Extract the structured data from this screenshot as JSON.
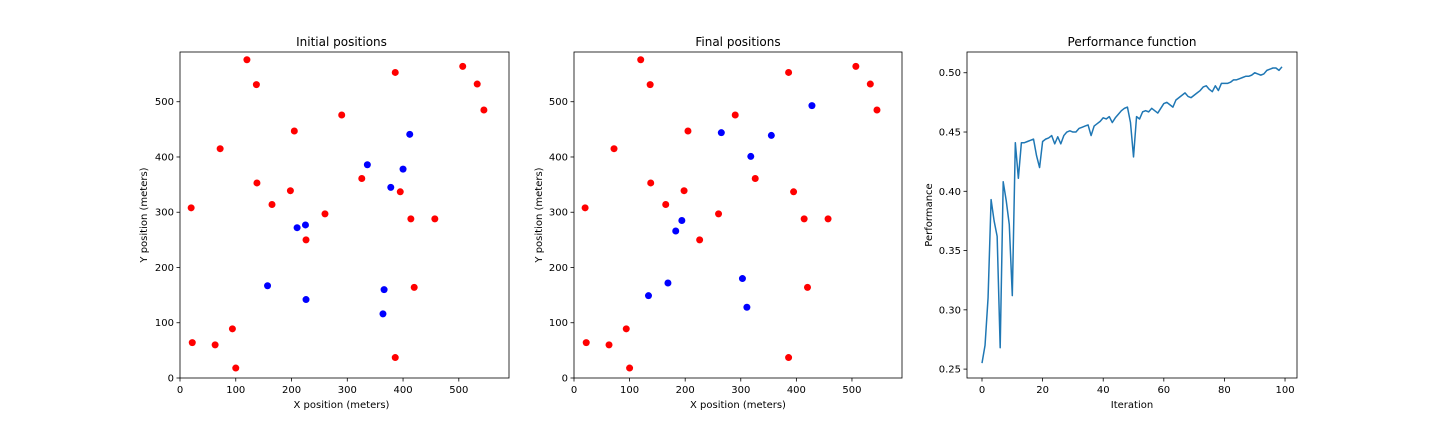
{
  "chart_data": [
    {
      "type": "scatter",
      "title": "Initial positions",
      "xlabel": "X position (meters)",
      "ylabel": "Y position (meters)",
      "xlim": [
        0,
        590
      ],
      "ylim": [
        0,
        590
      ],
      "xticks": [
        0,
        100,
        200,
        300,
        400,
        500
      ],
      "yticks": [
        0,
        100,
        200,
        300,
        400,
        500
      ],
      "grid": false,
      "series": [
        {
          "color": "#ff0000",
          "points": [
            [
              120,
              576
            ],
            [
              137,
              531
            ],
            [
              507,
              564
            ],
            [
              533,
              532
            ],
            [
              545,
              485
            ],
            [
              386,
              553
            ],
            [
              290,
              476
            ],
            [
              205,
              447
            ],
            [
              72,
              415
            ],
            [
              138,
              353
            ],
            [
              198,
              339
            ],
            [
              165,
              314
            ],
            [
              20,
              308
            ],
            [
              260,
              297
            ],
            [
              326,
              361
            ],
            [
              395,
              337
            ],
            [
              414,
              288
            ],
            [
              457,
              288
            ],
            [
              226,
              250
            ],
            [
              420,
              164
            ],
            [
              22,
              64
            ],
            [
              63,
              60
            ],
            [
              94,
              89
            ],
            [
              100,
              18
            ],
            [
              386,
              37
            ]
          ]
        },
        {
          "color": "#0000ff",
          "points": [
            [
              412,
              441
            ],
            [
              336,
              386
            ],
            [
              400,
              378
            ],
            [
              378,
              345
            ],
            [
              210,
              272
            ],
            [
              225,
              277
            ],
            [
              157,
              167
            ],
            [
              226,
              142
            ],
            [
              366,
              160
            ],
            [
              364,
              116
            ]
          ]
        }
      ]
    },
    {
      "type": "scatter",
      "title": "Final positions",
      "xlabel": "X position (meters)",
      "ylabel": "Y position (meters)",
      "xlim": [
        0,
        590
      ],
      "ylim": [
        0,
        590
      ],
      "xticks": [
        0,
        100,
        200,
        300,
        400,
        500
      ],
      "yticks": [
        0,
        100,
        200,
        300,
        400,
        500
      ],
      "grid": false,
      "series": [
        {
          "color": "#ff0000",
          "points": [
            [
              120,
              576
            ],
            [
              137,
              531
            ],
            [
              507,
              564
            ],
            [
              533,
              532
            ],
            [
              545,
              485
            ],
            [
              386,
              553
            ],
            [
              290,
              476
            ],
            [
              205,
              447
            ],
            [
              72,
              415
            ],
            [
              138,
              353
            ],
            [
              198,
              339
            ],
            [
              165,
              314
            ],
            [
              20,
              308
            ],
            [
              260,
              297
            ],
            [
              326,
              361
            ],
            [
              395,
              337
            ],
            [
              414,
              288
            ],
            [
              457,
              288
            ],
            [
              226,
              250
            ],
            [
              420,
              164
            ],
            [
              22,
              64
            ],
            [
              63,
              60
            ],
            [
              94,
              89
            ],
            [
              100,
              18
            ],
            [
              386,
              37
            ]
          ]
        },
        {
          "color": "#0000ff",
          "points": [
            [
              428,
              493
            ],
            [
              265,
              444
            ],
            [
              355,
              439
            ],
            [
              318,
              401
            ],
            [
              194,
              285
            ],
            [
              183,
              266
            ],
            [
              169,
              172
            ],
            [
              134,
              149
            ],
            [
              303,
              180
            ],
            [
              311,
              128
            ]
          ]
        }
      ]
    },
    {
      "type": "line",
      "title": "Performance function",
      "xlabel": "Iteration",
      "ylabel": "Performance",
      "xlim": [
        -4.95,
        103.95
      ],
      "ylim": [
        0.2425,
        0.5175
      ],
      "xticks": [
        0,
        20,
        40,
        60,
        80,
        100
      ],
      "yticks": [
        0.25,
        0.3,
        0.35,
        0.4,
        0.45,
        0.5
      ],
      "ytick_labels": [
        "0.25",
        "0.30",
        "0.35",
        "0.40",
        "0.45",
        "0.50"
      ],
      "grid": false,
      "series": [
        {
          "color": "#1f77b4",
          "values": [
            0.255,
            0.27,
            0.31,
            0.393,
            0.375,
            0.362,
            0.268,
            0.408,
            0.392,
            0.372,
            0.312,
            0.441,
            0.411,
            0.441,
            0.441,
            0.442,
            0.443,
            0.444,
            0.43,
            0.42,
            0.442,
            0.444,
            0.445,
            0.447,
            0.44,
            0.446,
            0.44,
            0.447,
            0.45,
            0.451,
            0.45,
            0.45,
            0.453,
            0.454,
            0.455,
            0.456,
            0.447,
            0.455,
            0.457,
            0.459,
            0.462,
            0.461,
            0.463,
            0.458,
            0.462,
            0.465,
            0.468,
            0.47,
            0.471,
            0.458,
            0.429,
            0.463,
            0.461,
            0.467,
            0.468,
            0.467,
            0.47,
            0.468,
            0.466,
            0.47,
            0.474,
            0.475,
            0.473,
            0.471,
            0.477,
            0.479,
            0.481,
            0.483,
            0.48,
            0.479,
            0.481,
            0.483,
            0.485,
            0.488,
            0.489,
            0.486,
            0.484,
            0.489,
            0.485,
            0.491,
            0.491,
            0.491,
            0.492,
            0.494,
            0.494,
            0.495,
            0.496,
            0.497,
            0.497,
            0.498,
            0.5,
            0.499,
            0.498,
            0.499,
            0.502,
            0.503,
            0.504,
            0.504,
            0.502,
            0.505
          ]
        }
      ]
    }
  ]
}
